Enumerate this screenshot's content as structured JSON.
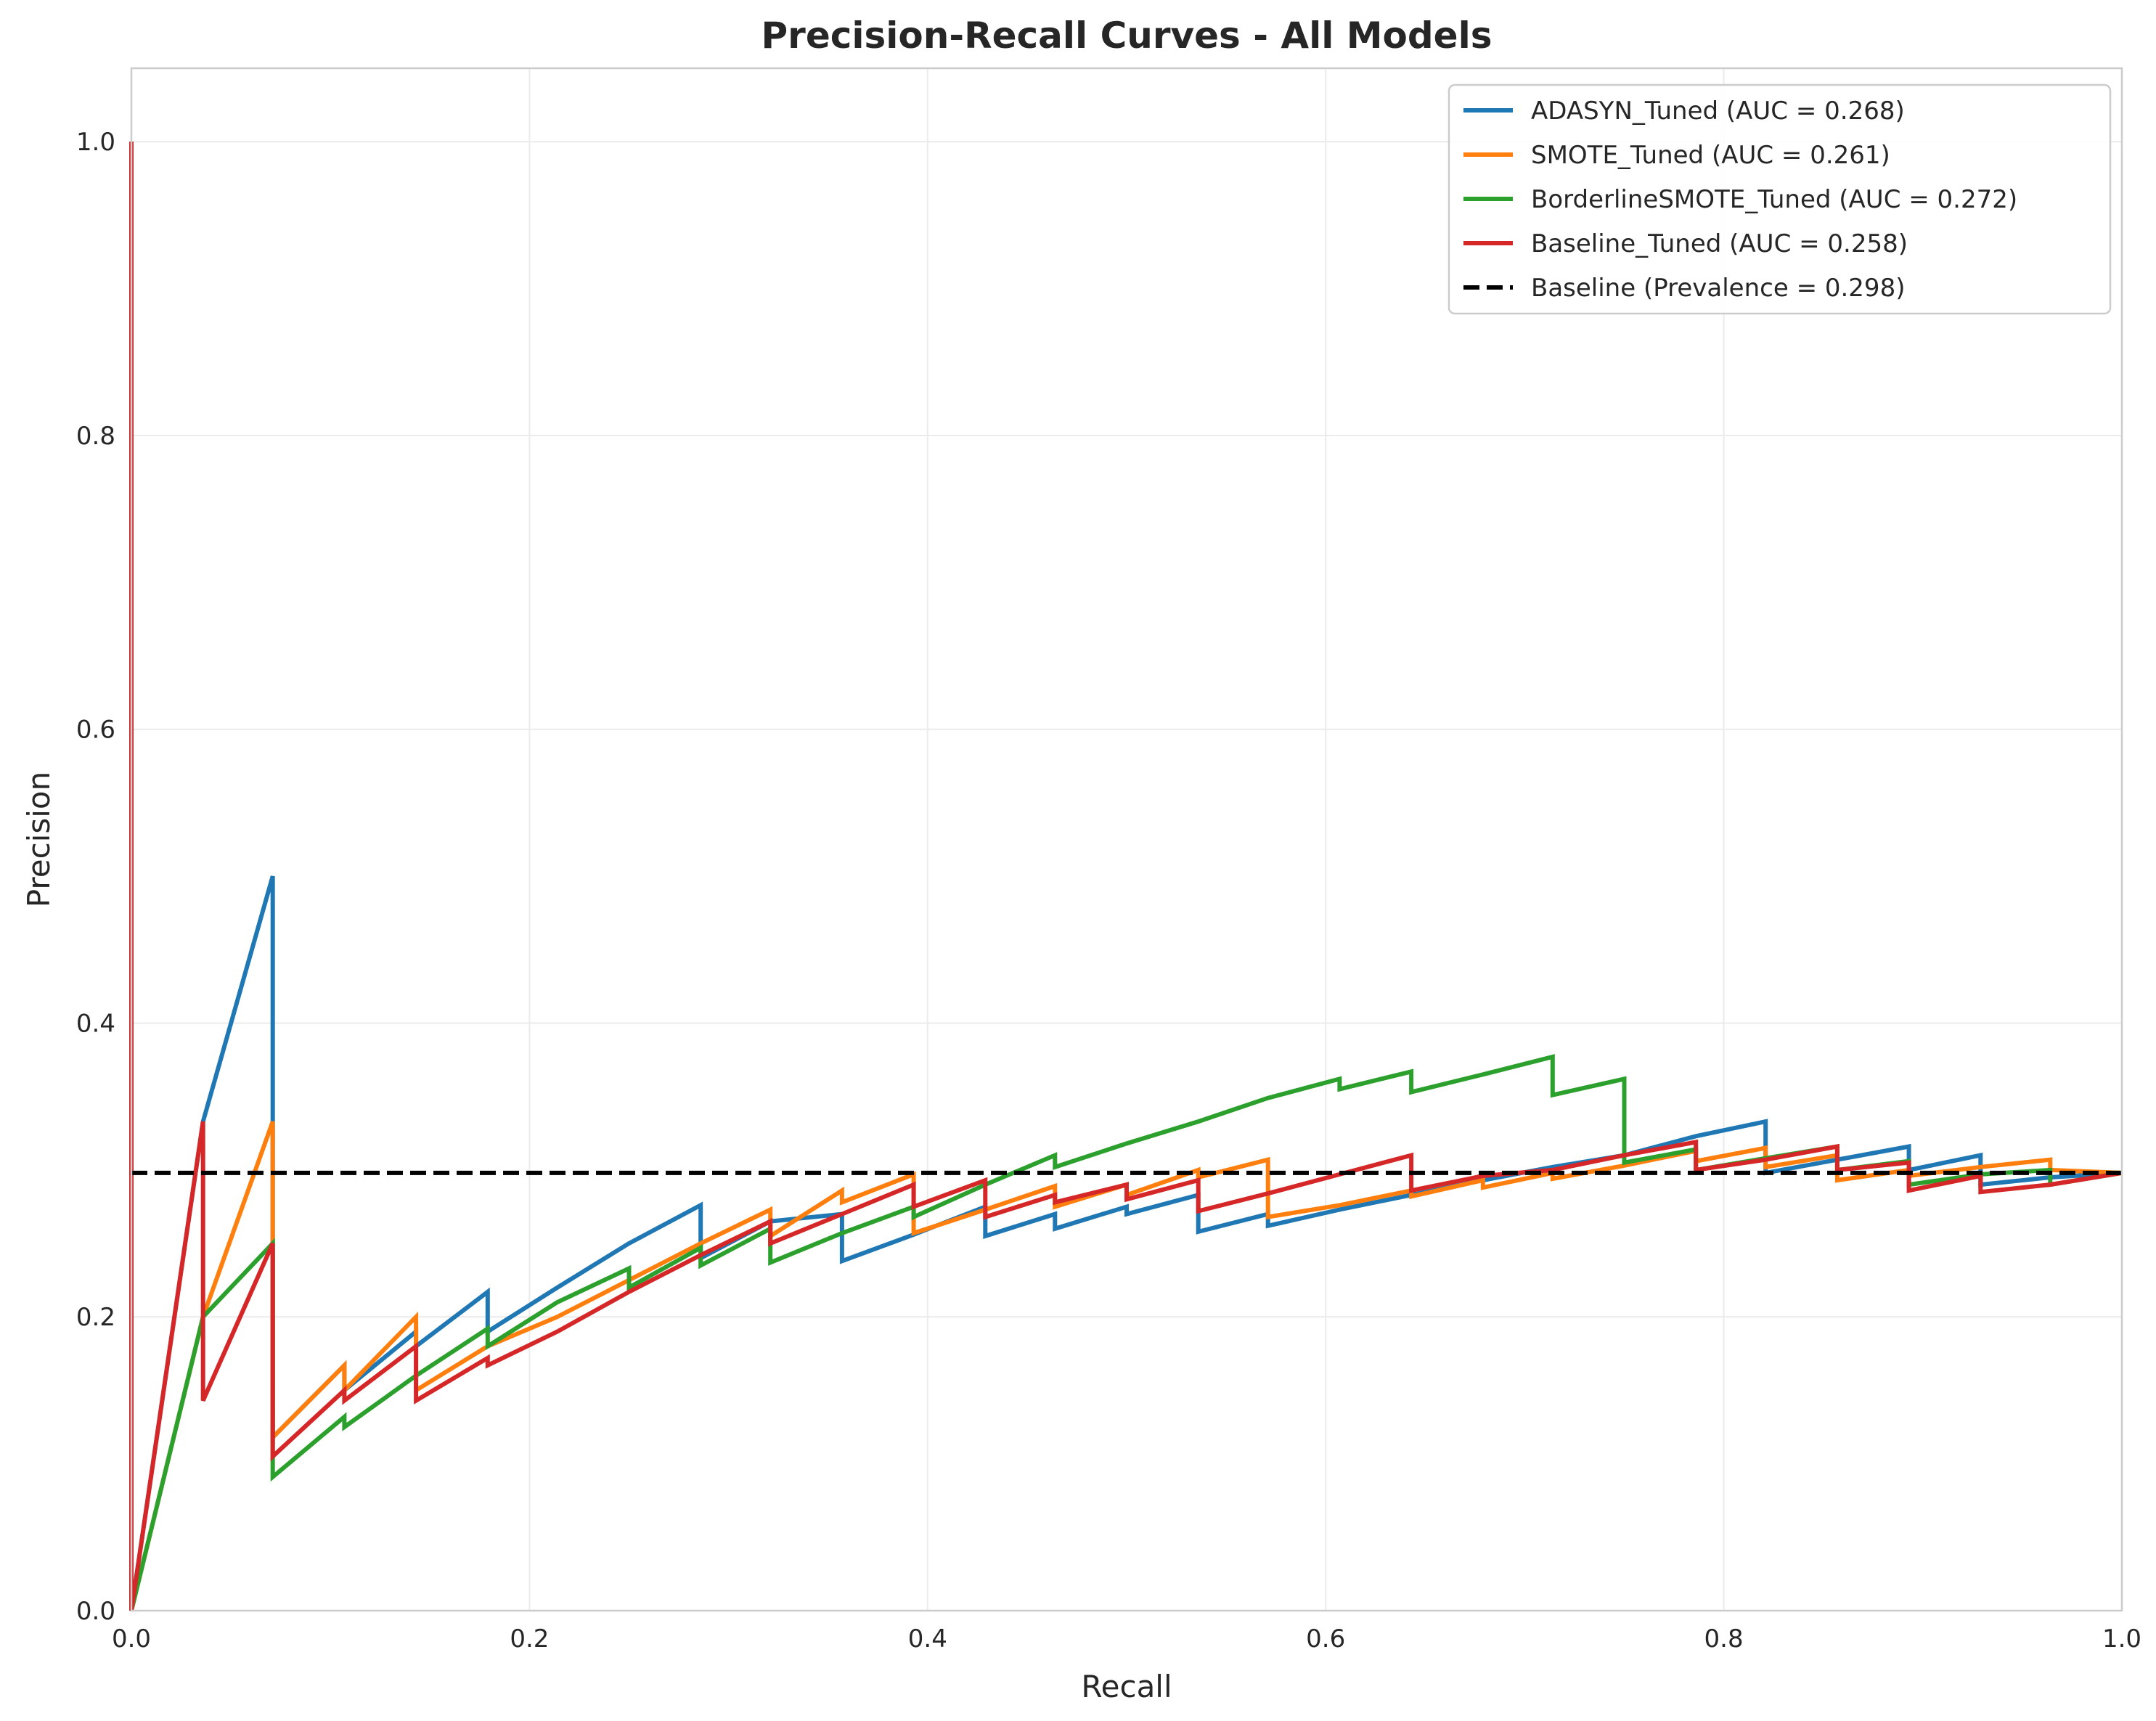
{
  "chart_data": {
    "type": "line",
    "title": "Precision-Recall Curves - All Models",
    "xlabel": "Recall",
    "ylabel": "Precision",
    "xlim": [
      0.0,
      1.0
    ],
    "ylim": [
      0.0,
      1.05
    ],
    "xticks": [
      0.0,
      0.2,
      0.4,
      0.6,
      0.8,
      1.0
    ],
    "yticks": [
      0.0,
      0.2,
      0.4,
      0.6,
      0.8,
      1.0
    ],
    "xtick_labels": [
      "0.0",
      "0.2",
      "0.4",
      "0.6",
      "0.8",
      "1.0"
    ],
    "ytick_labels": [
      "0.0",
      "0.2",
      "0.4",
      "0.6",
      "0.8",
      "1.0"
    ],
    "grid": true,
    "legend_position": "top-right",
    "series": [
      {
        "name": "ADASYN_Tuned (AUC = 0.268)",
        "color": "#1f77b4",
        "style": "solid",
        "points": [
          [
            0.0,
            1.0
          ],
          [
            0.0,
            0.0
          ],
          [
            0.036,
            0.333
          ],
          [
            0.071,
            0.5
          ],
          [
            0.071,
            0.333
          ],
          [
            0.071,
            0.25
          ],
          [
            0.071,
            0.118
          ],
          [
            0.107,
            0.167
          ],
          [
            0.107,
            0.15
          ],
          [
            0.143,
            0.19
          ],
          [
            0.143,
            0.18
          ],
          [
            0.179,
            0.217
          ],
          [
            0.179,
            0.19
          ],
          [
            0.214,
            0.22
          ],
          [
            0.25,
            0.25
          ],
          [
            0.286,
            0.276
          ],
          [
            0.286,
            0.24
          ],
          [
            0.321,
            0.265
          ],
          [
            0.357,
            0.27
          ],
          [
            0.357,
            0.238
          ],
          [
            0.393,
            0.256
          ],
          [
            0.429,
            0.275
          ],
          [
            0.429,
            0.255
          ],
          [
            0.464,
            0.27
          ],
          [
            0.464,
            0.26
          ],
          [
            0.5,
            0.275
          ],
          [
            0.5,
            0.27
          ],
          [
            0.536,
            0.283
          ],
          [
            0.536,
            0.258
          ],
          [
            0.571,
            0.27
          ],
          [
            0.571,
            0.262
          ],
          [
            0.607,
            0.273
          ],
          [
            0.643,
            0.283
          ],
          [
            0.679,
            0.293
          ],
          [
            0.714,
            0.302
          ],
          [
            0.75,
            0.31
          ],
          [
            0.786,
            0.323
          ],
          [
            0.821,
            0.333
          ],
          [
            0.821,
            0.298
          ],
          [
            0.857,
            0.307
          ],
          [
            0.893,
            0.316
          ],
          [
            0.893,
            0.3
          ],
          [
            0.929,
            0.31
          ],
          [
            0.929,
            0.29
          ],
          [
            0.964,
            0.295
          ],
          [
            1.0,
            0.298
          ]
        ]
      },
      {
        "name": "SMOTE_Tuned (AUC = 0.261)",
        "color": "#ff7f0e",
        "style": "solid",
        "points": [
          [
            0.0,
            1.0
          ],
          [
            0.0,
            0.0
          ],
          [
            0.036,
            0.2
          ],
          [
            0.071,
            0.333
          ],
          [
            0.071,
            0.25
          ],
          [
            0.071,
            0.118
          ],
          [
            0.107,
            0.167
          ],
          [
            0.107,
            0.15
          ],
          [
            0.143,
            0.2
          ],
          [
            0.143,
            0.15
          ],
          [
            0.179,
            0.18
          ],
          [
            0.214,
            0.2
          ],
          [
            0.25,
            0.225
          ],
          [
            0.286,
            0.25
          ],
          [
            0.321,
            0.273
          ],
          [
            0.321,
            0.255
          ],
          [
            0.357,
            0.286
          ],
          [
            0.357,
            0.278
          ],
          [
            0.393,
            0.297
          ],
          [
            0.393,
            0.257
          ],
          [
            0.429,
            0.273
          ],
          [
            0.464,
            0.289
          ],
          [
            0.464,
            0.275
          ],
          [
            0.5,
            0.29
          ],
          [
            0.5,
            0.283
          ],
          [
            0.536,
            0.3
          ],
          [
            0.536,
            0.295
          ],
          [
            0.571,
            0.307
          ],
          [
            0.571,
            0.268
          ],
          [
            0.607,
            0.276
          ],
          [
            0.643,
            0.286
          ],
          [
            0.643,
            0.282
          ],
          [
            0.679,
            0.293
          ],
          [
            0.679,
            0.288
          ],
          [
            0.714,
            0.298
          ],
          [
            0.714,
            0.294
          ],
          [
            0.75,
            0.303
          ],
          [
            0.786,
            0.313
          ],
          [
            0.786,
            0.306
          ],
          [
            0.821,
            0.315
          ],
          [
            0.821,
            0.302
          ],
          [
            0.857,
            0.31
          ],
          [
            0.857,
            0.293
          ],
          [
            0.893,
            0.3
          ],
          [
            0.893,
            0.296
          ],
          [
            0.929,
            0.302
          ],
          [
            0.964,
            0.307
          ],
          [
            0.964,
            0.3
          ],
          [
            1.0,
            0.298
          ]
        ]
      },
      {
        "name": "BorderlineSMOTE_Tuned (AUC = 0.272)",
        "color": "#2ca02c",
        "style": "solid",
        "points": [
          [
            0.0,
            1.0
          ],
          [
            0.0,
            0.0
          ],
          [
            0.036,
            0.2
          ],
          [
            0.071,
            0.25
          ],
          [
            0.071,
            0.091
          ],
          [
            0.107,
            0.132
          ],
          [
            0.107,
            0.125
          ],
          [
            0.143,
            0.16
          ],
          [
            0.179,
            0.192
          ],
          [
            0.179,
            0.18
          ],
          [
            0.214,
            0.21
          ],
          [
            0.25,
            0.233
          ],
          [
            0.25,
            0.22
          ],
          [
            0.286,
            0.247
          ],
          [
            0.286,
            0.235
          ],
          [
            0.321,
            0.26
          ],
          [
            0.321,
            0.237
          ],
          [
            0.357,
            0.257
          ],
          [
            0.393,
            0.275
          ],
          [
            0.393,
            0.268
          ],
          [
            0.429,
            0.29
          ],
          [
            0.464,
            0.31
          ],
          [
            0.464,
            0.302
          ],
          [
            0.5,
            0.318
          ],
          [
            0.536,
            0.333
          ],
          [
            0.571,
            0.349
          ],
          [
            0.607,
            0.362
          ],
          [
            0.607,
            0.355
          ],
          [
            0.643,
            0.367
          ],
          [
            0.643,
            0.353
          ],
          [
            0.679,
            0.365
          ],
          [
            0.714,
            0.377
          ],
          [
            0.714,
            0.351
          ],
          [
            0.75,
            0.362
          ],
          [
            0.75,
            0.305
          ],
          [
            0.786,
            0.314
          ],
          [
            0.786,
            0.3
          ],
          [
            0.821,
            0.308
          ],
          [
            0.857,
            0.316
          ],
          [
            0.857,
            0.3
          ],
          [
            0.893,
            0.306
          ],
          [
            0.893,
            0.29
          ],
          [
            0.929,
            0.297
          ],
          [
            0.964,
            0.3
          ],
          [
            0.964,
            0.29
          ],
          [
            1.0,
            0.298
          ]
        ]
      },
      {
        "name": "Baseline_Tuned (AUC = 0.258)",
        "color": "#d62728",
        "style": "solid",
        "points": [
          [
            0.0,
            1.0
          ],
          [
            0.0,
            0.0
          ],
          [
            0.036,
            0.333
          ],
          [
            0.036,
            0.143
          ],
          [
            0.071,
            0.25
          ],
          [
            0.071,
            0.105
          ],
          [
            0.107,
            0.15
          ],
          [
            0.107,
            0.143
          ],
          [
            0.143,
            0.18
          ],
          [
            0.143,
            0.143
          ],
          [
            0.179,
            0.172
          ],
          [
            0.179,
            0.167
          ],
          [
            0.214,
            0.19
          ],
          [
            0.25,
            0.217
          ],
          [
            0.286,
            0.242
          ],
          [
            0.321,
            0.265
          ],
          [
            0.321,
            0.25
          ],
          [
            0.357,
            0.27
          ],
          [
            0.393,
            0.29
          ],
          [
            0.393,
            0.275
          ],
          [
            0.429,
            0.293
          ],
          [
            0.429,
            0.268
          ],
          [
            0.464,
            0.283
          ],
          [
            0.464,
            0.278
          ],
          [
            0.5,
            0.29
          ],
          [
            0.5,
            0.28
          ],
          [
            0.536,
            0.293
          ],
          [
            0.536,
            0.272
          ],
          [
            0.571,
            0.284
          ],
          [
            0.607,
            0.297
          ],
          [
            0.643,
            0.31
          ],
          [
            0.643,
            0.286
          ],
          [
            0.679,
            0.296
          ],
          [
            0.714,
            0.3
          ],
          [
            0.75,
            0.31
          ],
          [
            0.786,
            0.319
          ],
          [
            0.786,
            0.3
          ],
          [
            0.821,
            0.307
          ],
          [
            0.857,
            0.316
          ],
          [
            0.857,
            0.3
          ],
          [
            0.893,
            0.305
          ],
          [
            0.893,
            0.286
          ],
          [
            0.929,
            0.296
          ],
          [
            0.929,
            0.285
          ],
          [
            0.964,
            0.29
          ],
          [
            1.0,
            0.298
          ]
        ]
      },
      {
        "name": "Baseline (Prevalence = 0.298)",
        "color": "#000000",
        "style": "dashed",
        "points": [
          [
            0.0,
            0.298
          ],
          [
            1.0,
            0.298
          ]
        ]
      }
    ]
  }
}
